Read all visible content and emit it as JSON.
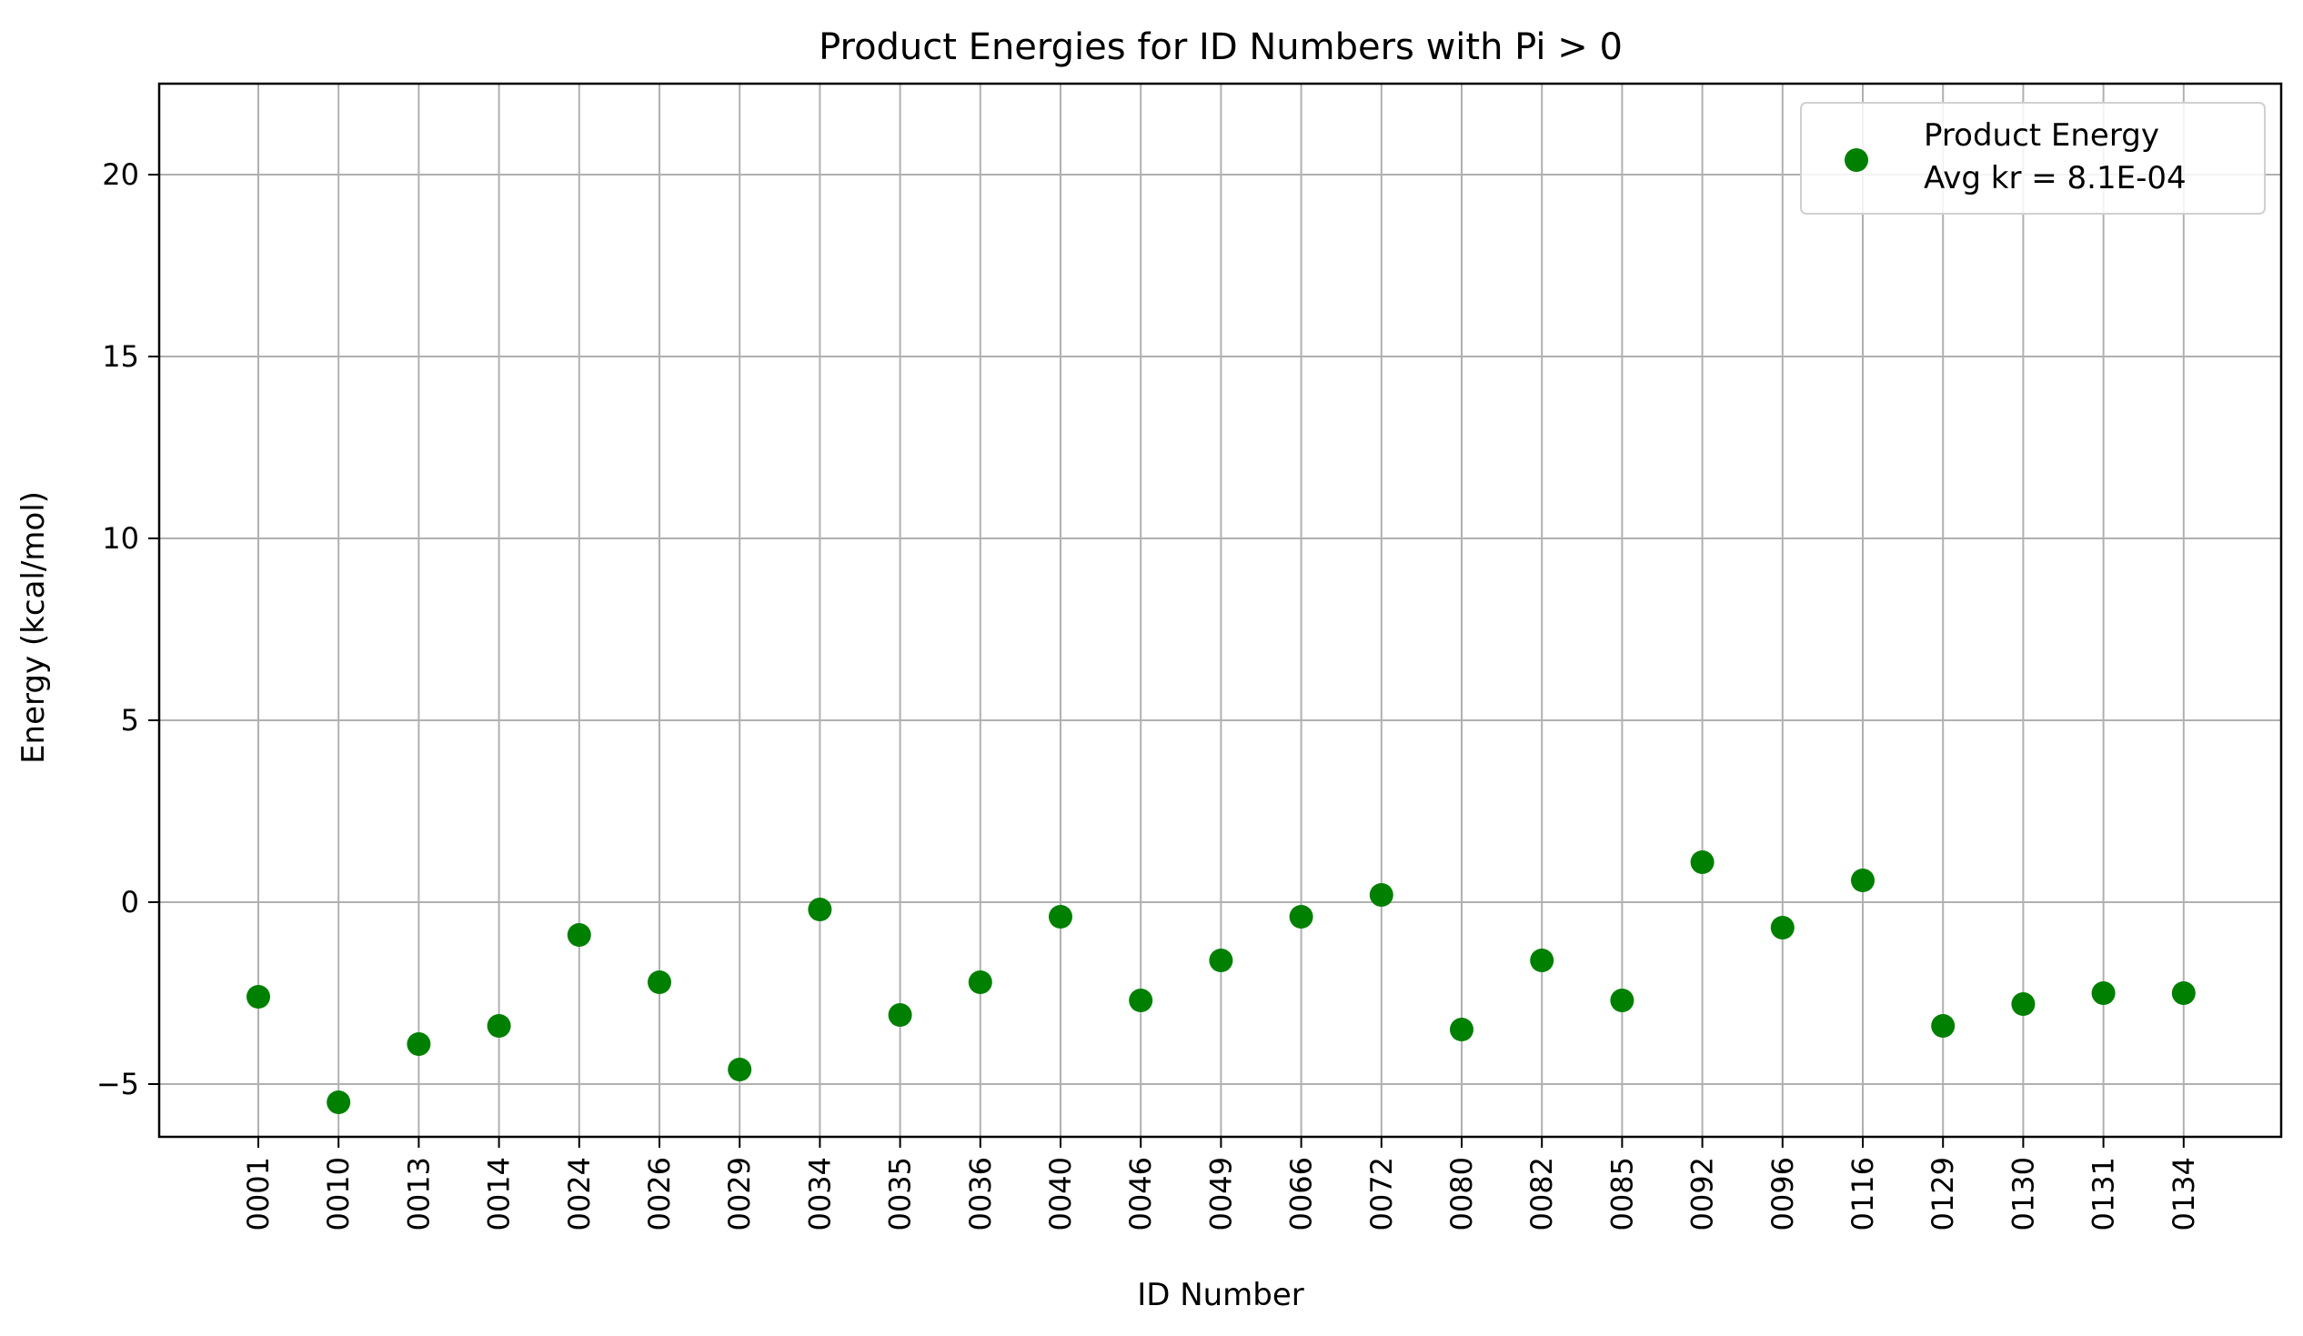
{
  "chart_data": {
    "type": "scatter",
    "title": "Product Energies for ID Numbers with Pi > 0",
    "xlabel": "ID Number",
    "ylabel": "Energy (kcal/mol)",
    "categories": [
      "0001",
      "0010",
      "0013",
      "0014",
      "0024",
      "0026",
      "0029",
      "0034",
      "0035",
      "0036",
      "0040",
      "0046",
      "0049",
      "0066",
      "0072",
      "0080",
      "0082",
      "0085",
      "0092",
      "0096",
      "0116",
      "0129",
      "0130",
      "0131",
      "0134"
    ],
    "series": [
      {
        "name": "Product Energy\nAvg kr = 8.1E-04",
        "color": "#008000",
        "values": [
          -2.6,
          -5.5,
          -3.9,
          -3.4,
          -0.9,
          -2.2,
          -4.6,
          -0.2,
          -3.1,
          -2.2,
          -0.4,
          -2.7,
          -1.6,
          -0.4,
          0.2,
          -3.5,
          -1.6,
          -2.7,
          1.1,
          -0.7,
          0.6,
          -3.4,
          -2.8,
          -2.5,
          -2.5
        ]
      }
    ],
    "ylim": [
      -6.45,
      22.5
    ],
    "yticks": [
      -5,
      0,
      5,
      10,
      15,
      20
    ],
    "ytick_labels": [
      "−5",
      "0",
      "5",
      "10",
      "15",
      "20"
    ],
    "grid": true,
    "legend": {
      "position": "top-right",
      "lines": [
        "Product Energy",
        "Avg kr = 8.1E-04"
      ]
    }
  }
}
